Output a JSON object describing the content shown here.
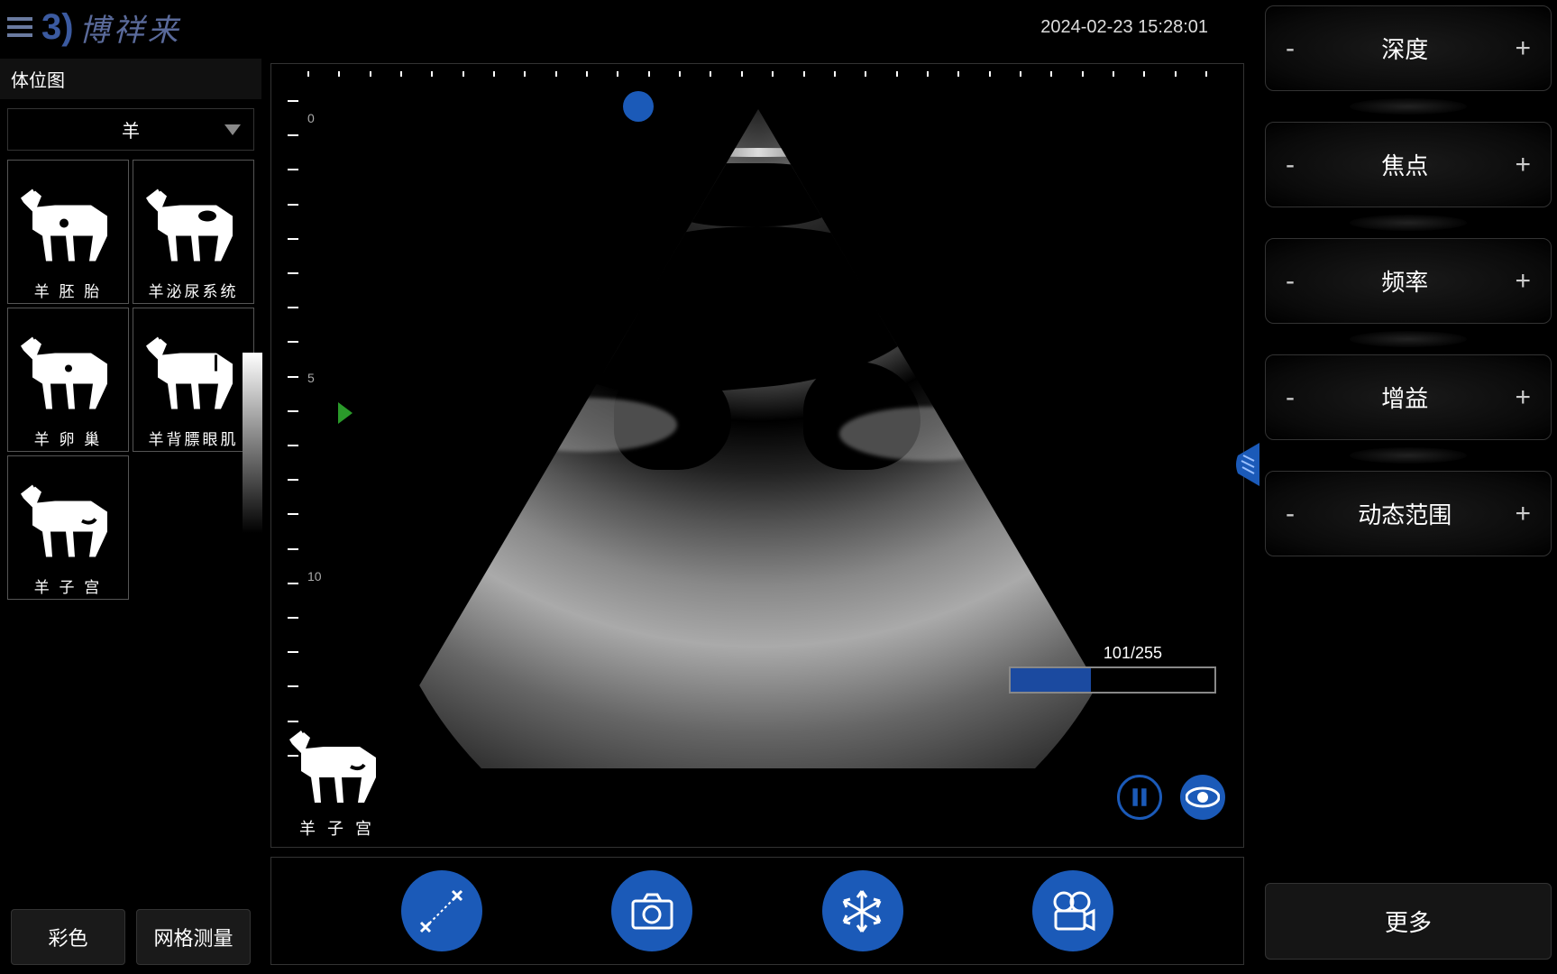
{
  "header": {
    "logo_text": "博祥来",
    "timestamp": "2024-02-23 15:28:01"
  },
  "left_panel": {
    "title": "体位图",
    "dropdown_selected": "羊",
    "thumbs": [
      {
        "label": "羊 胚 胎"
      },
      {
        "label": "羊泌尿系统"
      },
      {
        "label": "羊 卵 巢"
      },
      {
        "label": "羊背膘眼肌"
      },
      {
        "label": "羊 子 宫"
      }
    ],
    "buttons": {
      "color": "彩色",
      "grid": "网格测量"
    }
  },
  "main": {
    "scale_labels": [
      "0",
      "5",
      "10"
    ],
    "overlay_label": "羊 子 宫",
    "progress_text": "101/255",
    "progress_percent": 39.6
  },
  "right": {
    "params": [
      {
        "label": "深度"
      },
      {
        "label": "焦点"
      },
      {
        "label": "频率"
      },
      {
        "label": "增益"
      },
      {
        "label": "动态范围"
      }
    ],
    "more": "更多"
  },
  "colors": {
    "accent": "#1b5ab8"
  }
}
